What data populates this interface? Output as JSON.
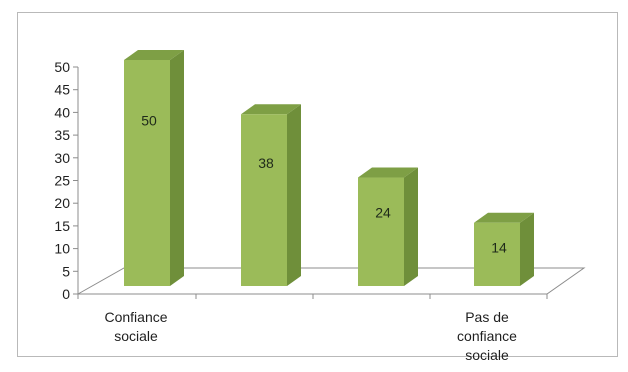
{
  "chart_data": {
    "type": "bar",
    "style": "3d-column",
    "categories": [
      [
        "Confiance",
        "sociale"
      ],
      [],
      [],
      [
        "Pas de",
        "confiance",
        "sociale"
      ]
    ],
    "values": [
      50,
      38,
      24,
      14
    ],
    "data_labels": [
      "50",
      "38",
      "24",
      "14"
    ],
    "y_ticks": [
      "0",
      "5",
      "10",
      "15",
      "20",
      "25",
      "30",
      "35",
      "40",
      "45",
      "50"
    ],
    "ylim": [
      0,
      50
    ],
    "title": "",
    "xlabel": "",
    "ylabel": "",
    "grid": false,
    "legend": "none",
    "colors": {
      "bar_front": "#9bbb59",
      "bar_side": "#6f8f3a",
      "bar_top": "#7e9f45",
      "axis": "#8c8c8c",
      "frame": "#b9b9b9"
    }
  }
}
